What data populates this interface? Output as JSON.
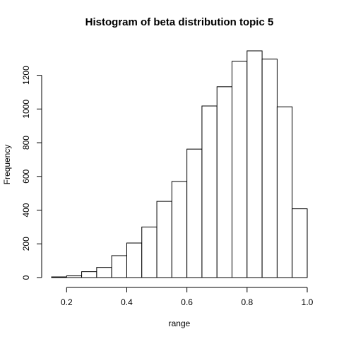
{
  "chart_data": {
    "type": "bar",
    "title": "Histogram of beta distribution topic  5",
    "xlabel": "range",
    "ylabel": "Frequency",
    "bin_edges": [
      0.15,
      0.2,
      0.25,
      0.3,
      0.35,
      0.4,
      0.45,
      0.5,
      0.55,
      0.6,
      0.65,
      0.7,
      0.75,
      0.8,
      0.85,
      0.9,
      0.95,
      1.0
    ],
    "values": [
      4,
      10,
      35,
      60,
      130,
      205,
      300,
      452,
      570,
      762,
      1018,
      1132,
      1283,
      1345,
      1296,
      1013,
      408
    ],
    "xlim": [
      0.15,
      1.0
    ],
    "ylim": [
      0,
      1345
    ],
    "x_ticks": [
      0.2,
      0.4,
      0.6,
      0.8,
      1.0
    ],
    "x_tick_labels": [
      "0.2",
      "0.4",
      "0.6",
      "0.8",
      "1.0"
    ],
    "y_ticks": [
      0,
      200,
      400,
      600,
      800,
      1000,
      1200
    ],
    "y_tick_labels": [
      "0",
      "200",
      "400",
      "600",
      "800",
      "1000",
      "1200"
    ],
    "grid": false,
    "bar_fill": "#ffffff",
    "bar_stroke": "#000000"
  }
}
